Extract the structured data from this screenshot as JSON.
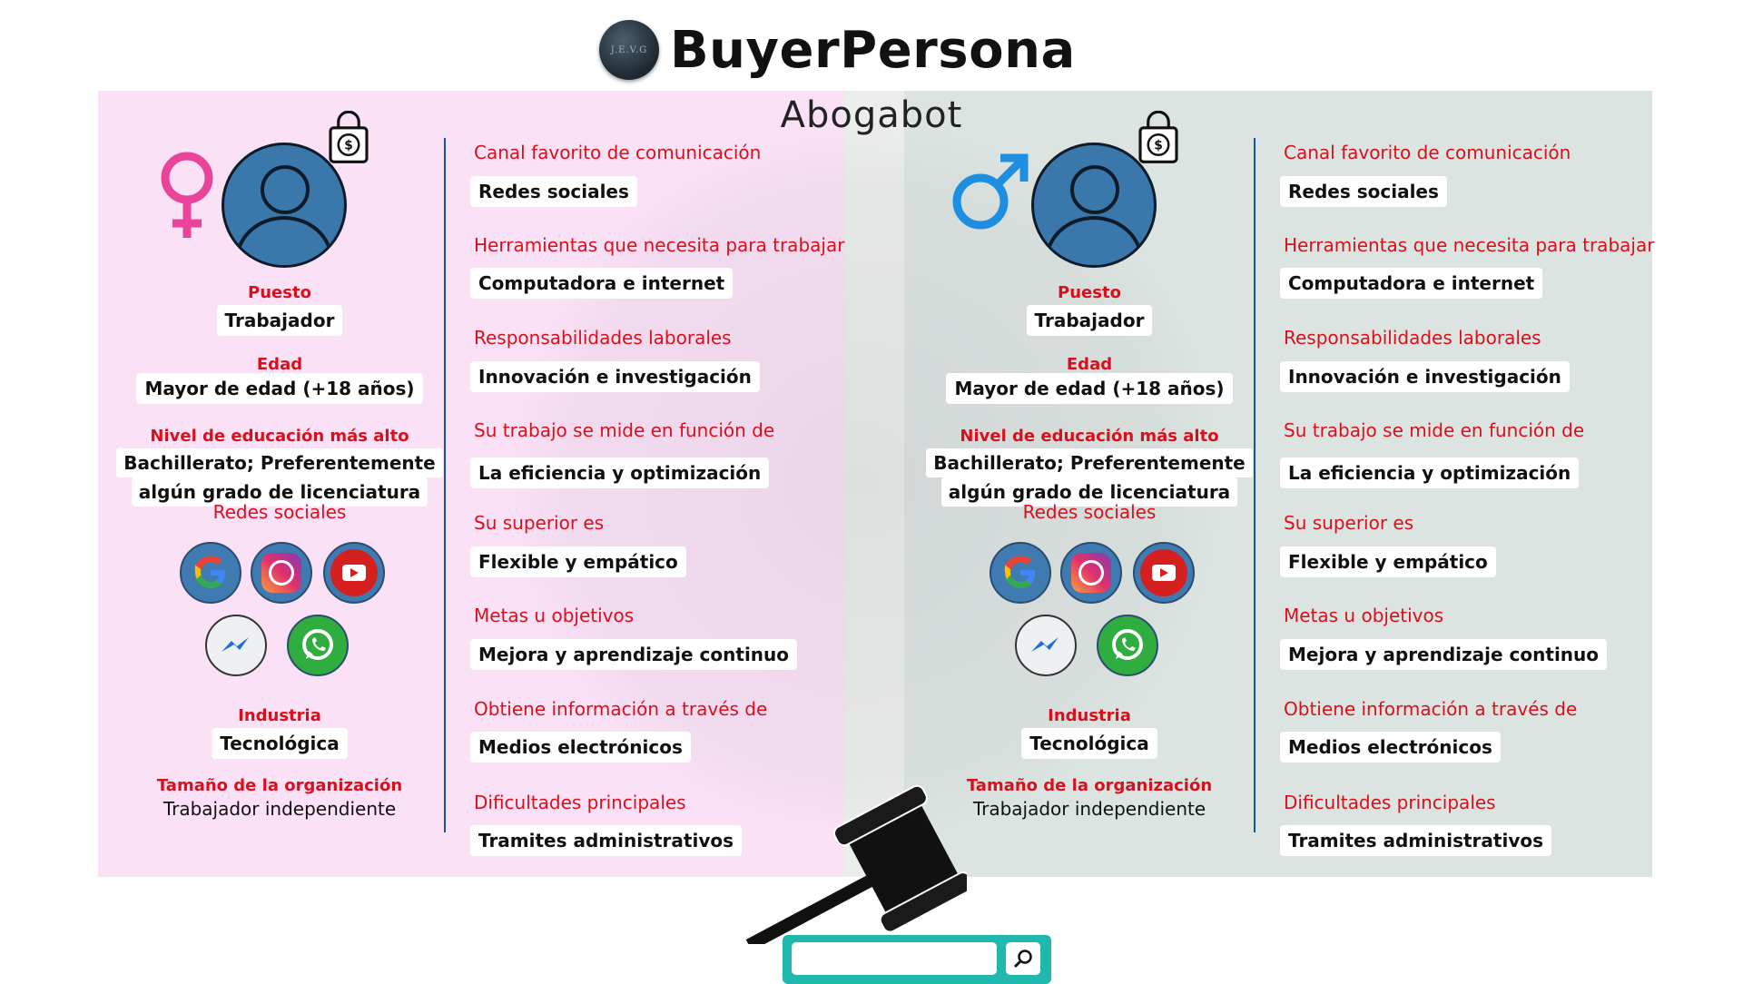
{
  "header": {
    "logo_text": "J.E.V.G",
    "brand": "BuyerPersona",
    "subtitle": "Abogabot"
  },
  "persona_left": {
    "gender_icon": "female-symbol-icon",
    "puesto_label": "Puesto",
    "puesto": "Trabajador",
    "edad_label": "Edad",
    "edad": "Mayor de edad (+18 años)",
    "educacion_label": "Nivel de educación más alto",
    "educacion_line1": "Bachillerato; Preferentemente",
    "educacion_line2": "algún grado de licenciatura",
    "redes_label": "Redes sociales",
    "industria_label": "Industria",
    "industria": "Tecnológica",
    "tamano_label": "Tamaño de la organización",
    "tamano": "Trabajador independiente",
    "details": [
      {
        "label": "Canal favorito de comunicación",
        "value": "Redes sociales"
      },
      {
        "label": "Herramientas que necesita para trabajar",
        "value": "Computadora e internet"
      },
      {
        "label": "Responsabilidades laborales",
        "value": "Innovación e investigación"
      },
      {
        "label": "Su trabajo se mide en función de",
        "value": "La eficiencia y optimización"
      },
      {
        "label": "Su superior es",
        "value": "Flexible y empático"
      },
      {
        "label": "Metas u objetivos",
        "value": "Mejora y aprendizaje continuo"
      },
      {
        "label": "Obtiene información a través de",
        "value": "Medios electrónicos"
      },
      {
        "label": "Dificultades principales",
        "value": "Tramites administrativos"
      }
    ]
  },
  "persona_right": {
    "gender_icon": "male-symbol-icon",
    "puesto_label": "Puesto",
    "puesto": "Trabajador",
    "edad_label": "Edad",
    "edad": "Mayor de edad (+18 años)",
    "educacion_label": "Nivel de educación más alto",
    "educacion_line1": "Bachillerato; Preferentemente",
    "educacion_line2": "algún grado de licenciatura",
    "redes_label": "Redes sociales",
    "industria_label": "Industria",
    "industria": "Tecnológica",
    "tamano_label": "Tamaño de la organización",
    "tamano": "Trabajador independiente",
    "details": [
      {
        "label": "Canal favorito de comunicación",
        "value": "Redes sociales"
      },
      {
        "label": "Herramientas que necesita para trabajar",
        "value": "Computadora e internet"
      },
      {
        "label": "Responsabilidades laborales",
        "value": "Innovación e investigación"
      },
      {
        "label": "Su trabajo se mide en función de",
        "value": "La eficiencia y optimización"
      },
      {
        "label": "Su superior es",
        "value": "Flexible y empático"
      },
      {
        "label": "Metas u objetivos",
        "value": "Mejora y aprendizaje continuo"
      },
      {
        "label": "Obtiene información a través de",
        "value": "Medios electrónicos"
      },
      {
        "label": "Dificultades principales",
        "value": "Tramites administrativos"
      }
    ]
  },
  "social_icons": [
    "google-icon",
    "instagram-icon",
    "youtube-icon",
    "messenger-icon",
    "whatsapp-icon"
  ],
  "colors": {
    "left_bg": "#fbe1f6",
    "right_bg": "#dce4e1",
    "label_red": "#d9101c",
    "avatar_blue": "#3a77aa",
    "search_teal": "#20b8ad"
  },
  "search": {
    "placeholder": "",
    "value": "",
    "icon": "search-icon"
  }
}
